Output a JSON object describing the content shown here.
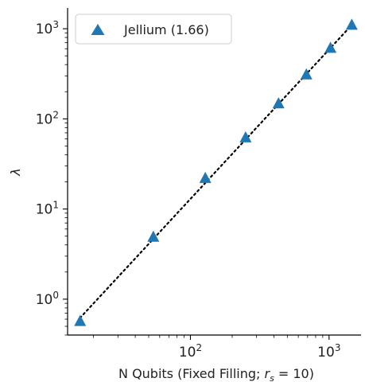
{
  "chart_data": {
    "type": "scatter",
    "x_scale": "log",
    "y_scale": "log",
    "xlabel": "N Qubits (Fixed Filling; r_s = 10)",
    "ylabel": "λ",
    "xlim": [
      13,
      1700
    ],
    "ylim": [
      0.4,
      1700
    ],
    "x_ticks": [
      {
        "value": 100,
        "label_base": "10",
        "label_exp": "2"
      },
      {
        "value": 1000,
        "label_base": "10",
        "label_exp": "3"
      }
    ],
    "y_ticks": [
      {
        "value": 1,
        "label_base": "10",
        "label_exp": "0"
      },
      {
        "value": 10,
        "label_base": "10",
        "label_exp": "1"
      },
      {
        "value": 100,
        "label_base": "10",
        "label_exp": "2"
      },
      {
        "value": 1000,
        "label_base": "10",
        "label_exp": "3"
      }
    ],
    "series": [
      {
        "name": "Jellium (1.66)",
        "marker": "triangle",
        "color": "#1f77b4",
        "x": [
          16,
          54,
          128,
          250,
          432,
          686,
          1024,
          1458
        ],
        "y": [
          0.57,
          4.9,
          22,
          62,
          148,
          310,
          610,
          1100
        ]
      }
    ],
    "fit_line": {
      "style": "dotted",
      "color": "#000000",
      "x": [
        16,
        1458
      ],
      "y": [
        0.62,
        1100
      ]
    },
    "legend_position": "top-left",
    "grid": false
  }
}
